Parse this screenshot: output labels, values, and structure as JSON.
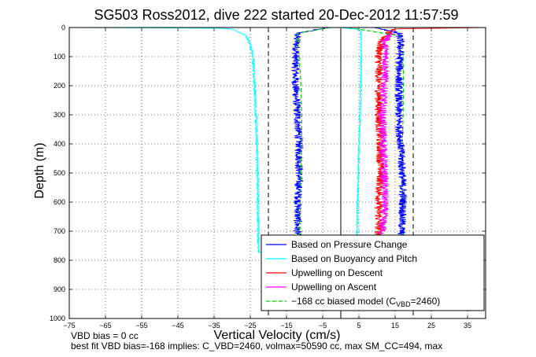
{
  "chart_data": {
    "type": "line",
    "title": "SG503 Ross2012, dive 222 started 20-Dec-2012 11:57:59",
    "xlabel": "Vertical Velocity (cm/s)",
    "ylabel": "Depth (m)",
    "xlim": [
      -75,
      40
    ],
    "ylim": [
      1000,
      0
    ],
    "xticks": [
      -75,
      -65,
      -55,
      -45,
      -35,
      -25,
      -15,
      -5,
      5,
      15,
      25,
      35
    ],
    "yticks": [
      0,
      100,
      200,
      300,
      400,
      500,
      600,
      700,
      800,
      900,
      1000
    ],
    "grid": true,
    "legend_position": "bottom-right",
    "vlines_dashed": [
      -20,
      20
    ],
    "vlines_solid": [
      0
    ],
    "series": [
      {
        "name": "Based on Pressure Change",
        "color": "#0000ff",
        "noise": 0.8,
        "x": [
          -4,
          -12,
          -12.5,
          -12.5,
          -12,
          -11.5,
          -11.5,
          -11.8,
          -12.0,
          -12.2,
          -12.3
        ],
        "y": [
          0,
          20,
          100,
          200,
          300,
          400,
          500,
          600,
          700,
          750,
          770
        ]
      },
      {
        "name": "Based on Buoyancy and Pitch",
        "color": "#00ffff",
        "noise": 0.25,
        "x": [
          -75,
          -35,
          -30,
          -26,
          -24.5,
          -24.2,
          -23.8,
          -23.5,
          -23.2,
          -23.0,
          -22.8,
          -22.6
        ],
        "y": [
          0,
          2,
          5,
          30,
          80,
          100,
          200,
          300,
          400,
          500,
          700,
          775
        ]
      },
      {
        "name": "Upwelling on Descent",
        "color": "#ff0000",
        "noise": 0.8,
        "x": [
          40,
          14,
          11,
          10.5,
          10.5,
          10.5,
          10.8,
          11.0,
          10.5,
          10.5,
          10.5
        ],
        "y": [
          0,
          5,
          50,
          100,
          200,
          300,
          400,
          500,
          600,
          700,
          760
        ]
      },
      {
        "name": "Upwelling on Ascent",
        "color": "#ff00ff",
        "noise": 0.8,
        "x": [
          14,
          12,
          12.5,
          12.0,
          11.5,
          11.8,
          12.0,
          12.2,
          11.8,
          11.5,
          11.5
        ],
        "y": [
          20,
          50,
          100,
          200,
          300,
          400,
          500,
          600,
          650,
          700,
          760
        ]
      },
      {
        "name": "−168 cc biased model (C",
        "name_sub": "VBD",
        "name_tail": "=2460)",
        "color": "#00cc00",
        "dashed": true,
        "noise": 0,
        "x": [
          2,
          17,
          17.2,
          17.3,
          17.2,
          17.0,
          17.0,
          17.0,
          17.2,
          17.5
        ],
        "y": [
          0,
          30,
          100,
          200,
          300,
          400,
          500,
          600,
          700,
          770
        ],
        "x2": [
          -3,
          -12,
          -11.5,
          -11.0,
          -10.8,
          -10.8,
          -11.0,
          -11.2,
          -11.5
        ],
        "y2": [
          0,
          20,
          100,
          200,
          300,
          400,
          500,
          600,
          770
        ]
      }
    ],
    "extra_traces": [
      {
        "color": "#0000ff",
        "noise": 0.8,
        "x": [
          10,
          16,
          16.5,
          16.3,
          16.0,
          16.0,
          16.5,
          17.0,
          17.2,
          17.0,
          16.8,
          16.5,
          16.2
        ],
        "y": [
          0,
          20,
          50,
          100,
          200,
          300,
          400,
          500,
          600,
          650,
          700,
          740,
          770
        ]
      },
      {
        "color": "#00ffff",
        "noise": 0.15,
        "x": [
          -1,
          4,
          5.5,
          5.6,
          5.5,
          5.3,
          5.0,
          4.8,
          4.6,
          4.5,
          4.5
        ],
        "y": [
          0,
          5,
          10,
          100,
          200,
          300,
          400,
          500,
          600,
          700,
          775
        ]
      }
    ]
  },
  "notes": {
    "vbd_bias": "VBD bias = 0 cc",
    "best_fit": "best fit VBD bias=-168 implies: C_VBD=2460, volmax=50590 cc, max SM_CC=494, max"
  }
}
